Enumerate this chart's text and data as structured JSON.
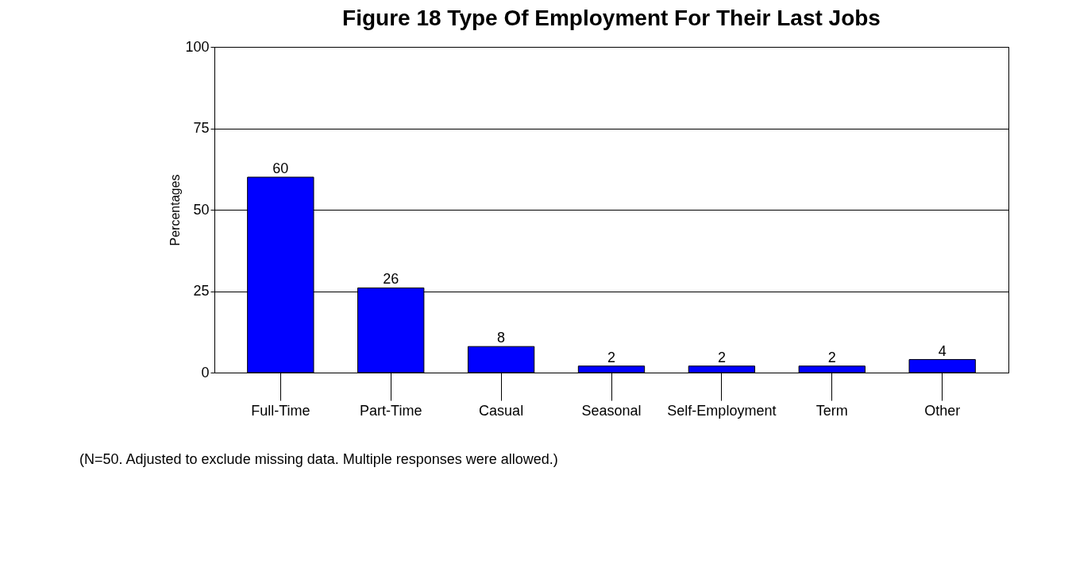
{
  "chart_data": {
    "type": "bar",
    "title": "Figure 18  Type Of Employment For Their Last Jobs",
    "ylabel": "Percentages",
    "categories": [
      "Full-Time",
      "Part-Time",
      "Casual",
      "Seasonal",
      "Self-Employment",
      "Term",
      "Other"
    ],
    "values": [
      60,
      26,
      8,
      2,
      2,
      2,
      4
    ],
    "color": "#0000ff",
    "data_labels": true,
    "ylim": [
      0,
      100
    ],
    "yticks": [
      0,
      25,
      50,
      75,
      100
    ],
    "grid": "y",
    "annotations": [
      "(N=50. Adjusted to exclude missing data. Multiple responses were allowed.)"
    ]
  }
}
